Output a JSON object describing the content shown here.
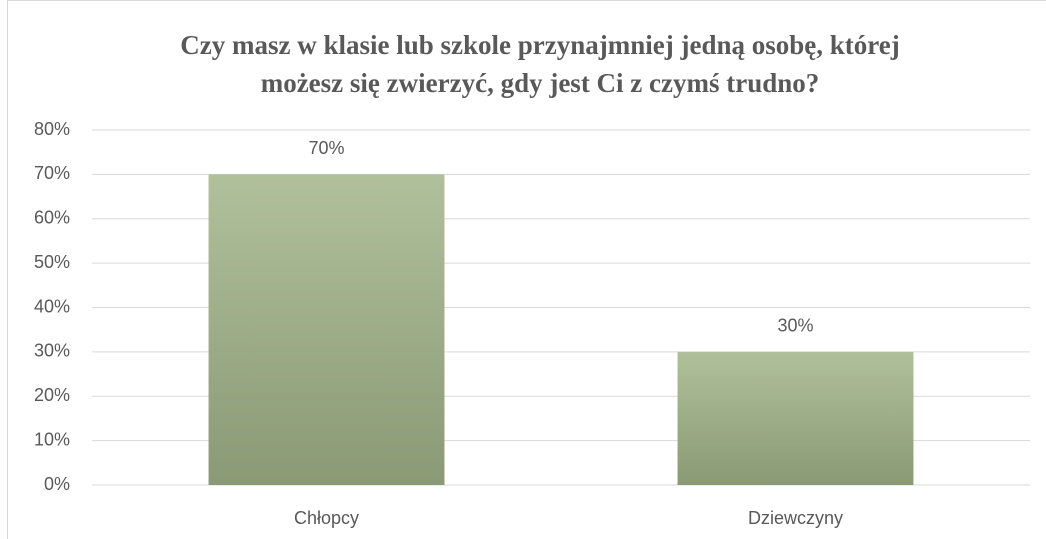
{
  "chart_data": {
    "type": "bar",
    "title": [
      "Czy masz w klasie lub szkole przynajmniej jedną osobę, której",
      "możesz się zwierzyć, gdy jest Ci z czymś trudno?"
    ],
    "categories": [
      "Chłopcy",
      "Dziewczyny"
    ],
    "values": [
      70,
      30
    ],
    "value_labels": [
      "70%",
      "30%"
    ],
    "color": "#a3b58a",
    "ylim": [
      0,
      80
    ],
    "yticks": [
      {
        "value": 0,
        "label": "0%"
      },
      {
        "value": 10,
        "label": "10%"
      },
      {
        "value": 20,
        "label": "20%"
      },
      {
        "value": 30,
        "label": "30%"
      },
      {
        "value": 40,
        "label": "40%"
      },
      {
        "value": 50,
        "label": "50%"
      },
      {
        "value": 60,
        "label": "60%"
      },
      {
        "value": 70,
        "label": "70%"
      },
      {
        "value": 80,
        "label": "80%"
      }
    ],
    "grid": true
  }
}
